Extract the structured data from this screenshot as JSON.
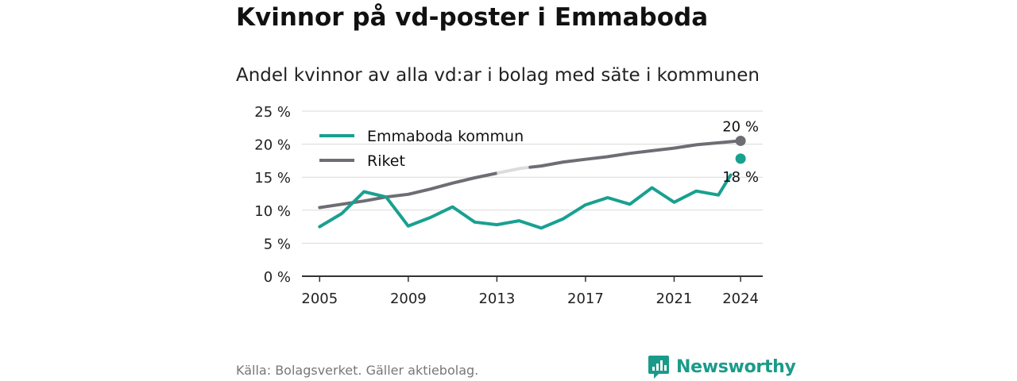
{
  "title": "Kvinnor på vd-poster i Emmaboda",
  "subtitle": "Andel kvinnor av alla vd:ar i bolag med säte i kommunen",
  "source": "Källa: Bolagsverket. Gäller aktiebolag.",
  "brand": "Newsworthy",
  "colors": {
    "emmaboda": "#19a090",
    "riket": "#6e6d73",
    "riket_gap": "#dcdcdc",
    "grid": "#d9d9d9",
    "axis": "#333333"
  },
  "chart_data": {
    "type": "line",
    "title": "Kvinnor på vd-poster i Emmaboda",
    "subtitle": "Andel kvinnor av alla vd:ar i bolag med säte i kommunen",
    "ylim": [
      0,
      25
    ],
    "xlim": [
      2004.2,
      2025
    ],
    "y_ticks": [
      0,
      5,
      10,
      15,
      20,
      25
    ],
    "y_tick_labels": [
      "0 %",
      "5 %",
      "10 %",
      "15 %",
      "20 %",
      "25 %"
    ],
    "x_ticks": [
      2005,
      2009,
      2013,
      2017,
      2021,
      2024
    ],
    "x_tick_labels": [
      "2005",
      "2009",
      "2013",
      "2017",
      "2021",
      "2024"
    ],
    "grid": true,
    "legend_position": "top-left",
    "series": [
      {
        "name": "Emmaboda kommun",
        "color": "#19a090",
        "x": [
          2005,
          2006,
          2007,
          2008,
          2009,
          2010,
          2011,
          2012,
          2013,
          2014,
          2015,
          2016,
          2017,
          2018,
          2019,
          2020,
          2021,
          2022,
          2023,
          2024
        ],
        "values": [
          7.5,
          9.5,
          12.8,
          12.0,
          7.6,
          8.9,
          10.5,
          8.2,
          7.8,
          8.4,
          7.3,
          8.7,
          10.8,
          11.9,
          10.9,
          13.4,
          11.2,
          12.9,
          12.3,
          17.8
        ],
        "end_label": "18 %"
      },
      {
        "name": "Riket",
        "color": "#6e6d73",
        "x": [
          2005,
          2006,
          2007,
          2008,
          2009,
          2010,
          2011,
          2012,
          2013,
          2014,
          2015,
          2016,
          2017,
          2018,
          2019,
          2020,
          2021,
          2022,
          2023,
          2024
        ],
        "values": [
          10.4,
          10.9,
          11.4,
          12.0,
          12.4,
          13.2,
          14.1,
          14.9,
          15.6,
          16.3,
          16.7,
          17.3,
          17.7,
          18.1,
          18.6,
          19.0,
          19.4,
          19.9,
          20.2,
          20.5
        ],
        "gap_segment": [
          2013,
          2014.5
        ],
        "end_label": "20 %"
      }
    ]
  }
}
